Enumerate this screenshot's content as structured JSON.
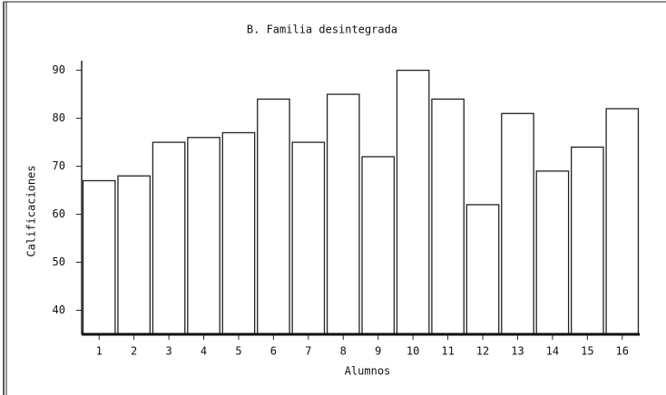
{
  "chart_data": {
    "type": "bar",
    "title": "B. Familia desintegrada",
    "xlabel": "Alumnos",
    "ylabel": "Calificaciones",
    "categories": [
      "1",
      "2",
      "3",
      "4",
      "5",
      "6",
      "7",
      "8",
      "9",
      "10",
      "11",
      "12",
      "13",
      "14",
      "15",
      "16"
    ],
    "values": [
      67,
      68,
      75,
      76,
      77,
      84,
      75,
      85,
      72,
      90,
      84,
      62,
      81,
      69,
      74,
      82
    ],
    "color": "#ffffff",
    "ylim": [
      35,
      92
    ],
    "yticks": [
      40,
      50,
      60,
      70,
      80,
      90
    ],
    "grid": false
  }
}
